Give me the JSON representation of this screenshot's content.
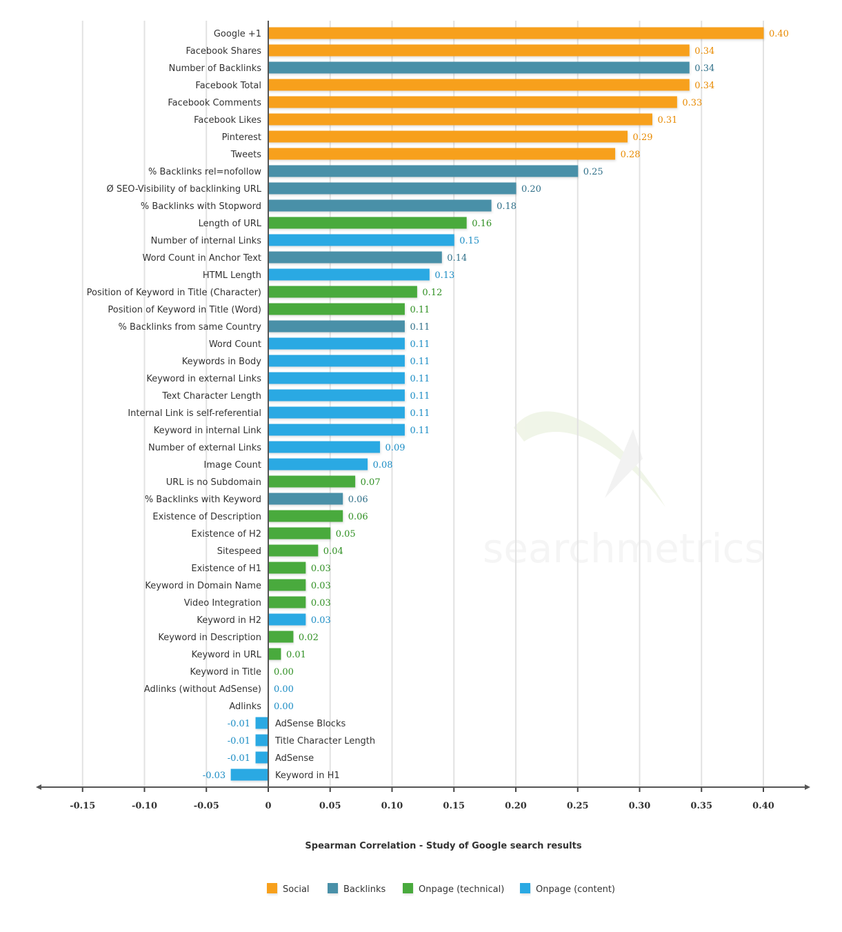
{
  "chart_data": {
    "type": "bar",
    "orientation": "horizontal",
    "title": "Spearman Correlation - Study of Google search results",
    "xlim": [
      -0.15,
      0.4
    ],
    "x_ticks": [
      "-0.15",
      "-0.10",
      "-0.05",
      "0",
      "0.05",
      "0.10",
      "0.15",
      "0.20",
      "0.25",
      "0.30",
      "0.35",
      "0.40"
    ],
    "grid": true,
    "legend_position": "bottom",
    "series": [
      {
        "name": "Social",
        "color": "#f7a01a",
        "label_color": "#e88a00"
      },
      {
        "name": "Backlinks",
        "color": "#4a90a8",
        "label_color": "#2f6f88"
      },
      {
        "name": "Onpage (technical)",
        "color": "#4aaa3c",
        "label_color": "#2f8f22"
      },
      {
        "name": "Onpage (content)",
        "color": "#2aa9e3",
        "label_color": "#1a8cc4"
      }
    ],
    "bars": [
      {
        "label": "Google +1",
        "value": 0.4,
        "series": 0
      },
      {
        "label": "Facebook Shares",
        "value": 0.34,
        "series": 0
      },
      {
        "label": "Number of Backlinks",
        "value": 0.34,
        "series": 1
      },
      {
        "label": "Facebook Total",
        "value": 0.34,
        "series": 0
      },
      {
        "label": "Facebook Comments",
        "value": 0.33,
        "series": 0
      },
      {
        "label": "Facebook Likes",
        "value": 0.31,
        "series": 0
      },
      {
        "label": "Pinterest",
        "value": 0.29,
        "series": 0
      },
      {
        "label": "Tweets",
        "value": 0.28,
        "series": 0
      },
      {
        "label": "% Backlinks rel=nofollow",
        "value": 0.25,
        "series": 1
      },
      {
        "label": "Ø SEO-Visibility of backlinking URL",
        "value": 0.2,
        "series": 1
      },
      {
        "label": "% Backlinks with Stopword",
        "value": 0.18,
        "series": 1
      },
      {
        "label": "Length of URL",
        "value": 0.16,
        "series": 2
      },
      {
        "label": "Number of internal Links",
        "value": 0.15,
        "series": 3
      },
      {
        "label": "Word Count in Anchor Text",
        "value": 0.14,
        "series": 1
      },
      {
        "label": "HTML Length",
        "value": 0.13,
        "series": 3
      },
      {
        "label": "Position of Keyword in Title (Character)",
        "value": 0.12,
        "series": 2
      },
      {
        "label": "Position of Keyword in Title (Word)",
        "value": 0.11,
        "series": 2
      },
      {
        "label": "% Backlinks from same Country",
        "value": 0.11,
        "series": 1
      },
      {
        "label": "Word Count",
        "value": 0.11,
        "series": 3
      },
      {
        "label": "Keywords in Body",
        "value": 0.11,
        "series": 3
      },
      {
        "label": "Keyword in external Links",
        "value": 0.11,
        "series": 3
      },
      {
        "label": "Text Character Length",
        "value": 0.11,
        "series": 3
      },
      {
        "label": "Internal Link is self-referential",
        "value": 0.11,
        "series": 3
      },
      {
        "label": "Keyword in internal Link",
        "value": 0.11,
        "series": 3
      },
      {
        "label": "Number of external Links",
        "value": 0.09,
        "series": 3
      },
      {
        "label": "Image Count",
        "value": 0.08,
        "series": 3
      },
      {
        "label": "URL is no Subdomain",
        "value": 0.07,
        "series": 2
      },
      {
        "label": "% Backlinks with Keyword",
        "value": 0.06,
        "series": 1
      },
      {
        "label": "Existence of Description",
        "value": 0.06,
        "series": 2
      },
      {
        "label": "Existence of H2",
        "value": 0.05,
        "series": 2
      },
      {
        "label": "Sitespeed",
        "value": 0.04,
        "series": 2
      },
      {
        "label": "Existence of H1",
        "value": 0.03,
        "series": 2
      },
      {
        "label": "Keyword in Domain Name",
        "value": 0.03,
        "series": 2
      },
      {
        "label": "Video Integration",
        "value": 0.03,
        "series": 2
      },
      {
        "label": "Keyword in H2",
        "value": 0.03,
        "series": 3
      },
      {
        "label": "Keyword in Description",
        "value": 0.02,
        "series": 2
      },
      {
        "label": "Keyword in URL",
        "value": 0.01,
        "series": 2
      },
      {
        "label": "Keyword in Title",
        "value": 0.0,
        "series": 2
      },
      {
        "label": "Adlinks (without AdSense)",
        "value": 0.0,
        "series": 3
      },
      {
        "label": "Adlinks",
        "value": 0.0,
        "series": 3
      },
      {
        "label": "AdSense Blocks",
        "value": -0.01,
        "series": 3
      },
      {
        "label": "Title Character Length",
        "value": -0.01,
        "series": 3
      },
      {
        "label": "AdSense",
        "value": -0.01,
        "series": 3
      },
      {
        "label": "Keyword in H1",
        "value": -0.03,
        "series": 3
      }
    ]
  },
  "watermark": "searchmetrics"
}
